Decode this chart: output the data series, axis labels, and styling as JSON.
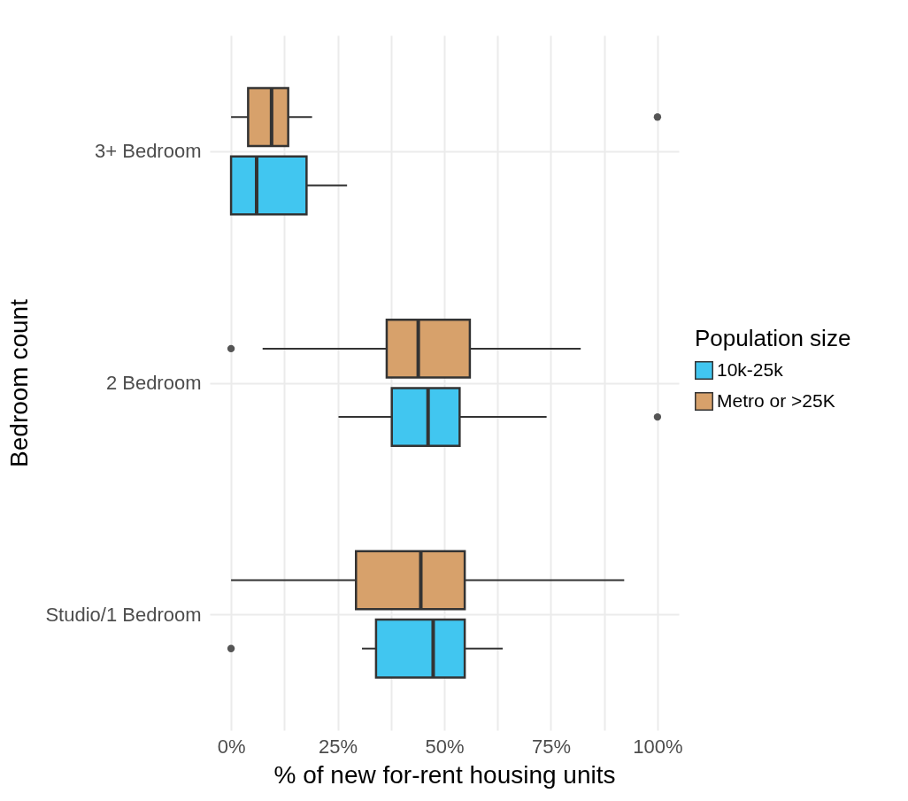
{
  "chart_data": {
    "type": "box",
    "orientation": "horizontal",
    "xlabel": "% of new for-rent housing units",
    "ylabel": "Bedroom count",
    "legend_title": "Population size",
    "categories": [
      "3+ Bedroom",
      "2 Bedroom",
      "Studio/1 Bedroom"
    ],
    "series": [
      {
        "name": "10k-25k",
        "color": "#41c6f0",
        "boxes": [
          {
            "low": 0,
            "q1": 0,
            "median": 6,
            "q3": 17.7,
            "high": 27.2
          },
          {
            "low": 25.2,
            "q1": 37.7,
            "median": 46.2,
            "q3": 53.6,
            "high": 74,
            "outliers": [
              100
            ]
          },
          {
            "low": 30.7,
            "q1": 34,
            "median": 47.4,
            "q3": 54.8,
            "high": 63.7,
            "outliers": [
              0
            ]
          }
        ]
      },
      {
        "name": "Metro or >25K",
        "color": "#d7a16b",
        "boxes": [
          {
            "low": 0,
            "q1": 4,
            "median": 9.5,
            "q3": 13.4,
            "high": 19,
            "outliers": [
              100
            ]
          },
          {
            "low": 7.4,
            "q1": 36.5,
            "median": 43.9,
            "q3": 56,
            "high": 82,
            "outliers": [
              0
            ]
          },
          {
            "low": 0,
            "q1": 29.3,
            "median": 44.5,
            "q3": 54.8,
            "high": 92.2
          }
        ]
      }
    ],
    "xlim": [
      -5,
      105
    ],
    "xticks": [
      {
        "value": 0,
        "label": "0%"
      },
      {
        "value": 12.5,
        "label": null
      },
      {
        "value": 25,
        "label": "25%"
      },
      {
        "value": 37.5,
        "label": null
      },
      {
        "value": 50,
        "label": "50%"
      },
      {
        "value": 62.5,
        "label": null
      },
      {
        "value": 75,
        "label": "75%"
      },
      {
        "value": 87.5,
        "label": null
      },
      {
        "value": 100,
        "label": "100%"
      }
    ],
    "grid": true,
    "legend": "right"
  }
}
